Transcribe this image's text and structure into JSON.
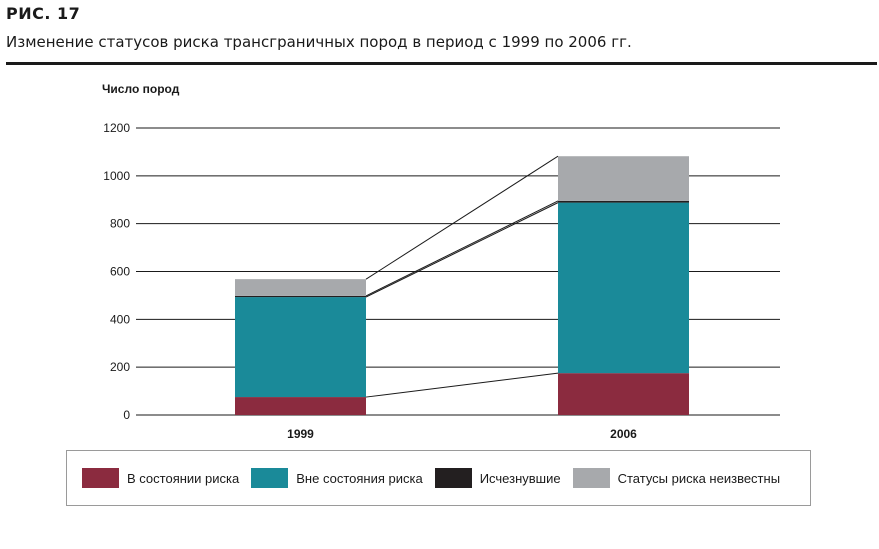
{
  "figure": {
    "number": "РИС.  17",
    "caption": "Изменение статусов риска трансграничных пород в период с 1999 по 2006 гг."
  },
  "chart_data": {
    "type": "bar",
    "stacked": true,
    "categories": [
      "1999",
      "2006"
    ],
    "ylabel": "Число пород",
    "ylim": [
      0,
      1200
    ],
    "yticks": [
      0,
      200,
      400,
      600,
      800,
      1000,
      1200
    ],
    "grid": true,
    "legend_position": "bottom",
    "series": [
      {
        "name": "В состоянии риска",
        "color": "#8b2b3f",
        "values": [
          75,
          175
        ]
      },
      {
        "name": "Вне состояния риска",
        "color": "#1a8a99",
        "values": [
          418,
          713
        ]
      },
      {
        "name": "Исчезнувшие",
        "color": "#231f20",
        "values": [
          5,
          7
        ]
      },
      {
        "name": "Статусы риска неизвестны",
        "color": "#a7a9ac",
        "values": [
          70,
          187
        ]
      }
    ]
  }
}
